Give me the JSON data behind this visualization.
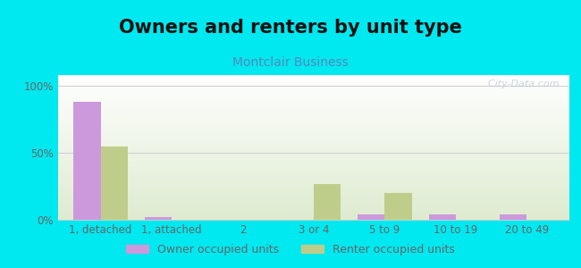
{
  "title": "Owners and renters by unit type",
  "subtitle": "Montclair Business",
  "categories": [
    "1, detached",
    "1, attached",
    "2",
    "3 or 4",
    "5 to 9",
    "10 to 19",
    "20 to 49"
  ],
  "owner_values": [
    88,
    2,
    0,
    0,
    4,
    4,
    4
  ],
  "renter_values": [
    55,
    0,
    0,
    27,
    20,
    0,
    0
  ],
  "owner_color": "#cc99dd",
  "renter_color": "#bece8a",
  "background_color": "#00e8f0",
  "plot_bg_top": "#ffffff",
  "plot_bg_bottom": "#deebd0",
  "title_fontsize": 15,
  "subtitle_fontsize": 10,
  "ylabel_ticks": [
    0,
    50,
    100
  ],
  "ylabel_labels": [
    "0%",
    "50%",
    "100%"
  ],
  "ylim": [
    0,
    108
  ],
  "bar_width": 0.38,
  "legend_labels": [
    "Owner occupied units",
    "Renter occupied units"
  ],
  "watermark": "  City-Data.com",
  "tick_color": "#666666",
  "grid_color": "#cccccc",
  "subtitle_color": "#5588bb"
}
